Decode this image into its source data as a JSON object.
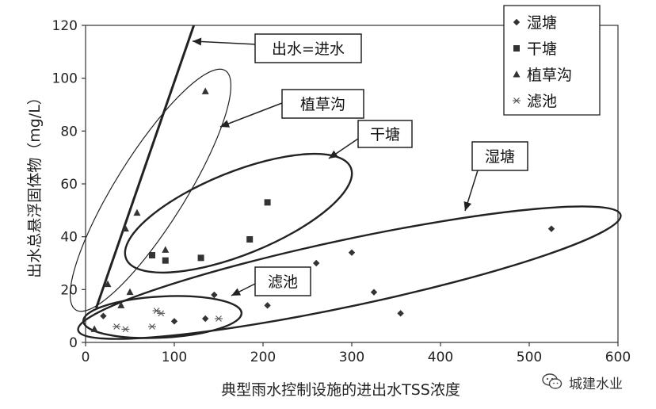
{
  "chart_data": {
    "type": "scatter",
    "xlabel": "典型雨水控制设施的进出水TSS浓度",
    "ylabel": "出水总悬浮固体物（mg/L）",
    "xlim": [
      0,
      600
    ],
    "ylim": [
      0,
      120
    ],
    "x_ticks": [
      "0",
      "100",
      "200",
      "300",
      "400",
      "500",
      "600"
    ],
    "y_ticks": [
      "0",
      "20",
      "40",
      "60",
      "80",
      "100",
      "120"
    ],
    "grid": false,
    "legend_position": "top-right",
    "series": [
      {
        "name": "湿塘",
        "marker": "diamond",
        "points": [
          [
            20,
            10
          ],
          [
            100,
            8
          ],
          [
            135,
            9
          ],
          [
            145,
            18
          ],
          [
            205,
            14
          ],
          [
            260,
            30
          ],
          [
            300,
            34
          ],
          [
            325,
            19
          ],
          [
            355,
            11
          ],
          [
            525,
            43
          ]
        ]
      },
      {
        "name": "干塘",
        "marker": "square",
        "points": [
          [
            75,
            33
          ],
          [
            90,
            31
          ],
          [
            130,
            32
          ],
          [
            185,
            39
          ],
          [
            205,
            53
          ]
        ]
      },
      {
        "name": "植草沟",
        "marker": "triangle",
        "points": [
          [
            10,
            5
          ],
          [
            25,
            22
          ],
          [
            40,
            14
          ],
          [
            45,
            43
          ],
          [
            50,
            19
          ],
          [
            58,
            49
          ],
          [
            90,
            35
          ],
          [
            135,
            95
          ]
        ]
      },
      {
        "name": "滤池",
        "marker": "asterisk",
        "points": [
          [
            35,
            6
          ],
          [
            45,
            5
          ],
          [
            75,
            6
          ],
          [
            80,
            12
          ],
          [
            85,
            11
          ],
          [
            150,
            9
          ]
        ]
      }
    ],
    "reference_line": {
      "label": "出水=进水",
      "points": [
        [
          12,
          13
        ],
        [
          122,
          120
        ]
      ]
    },
    "annotations": [
      {
        "label": "出水=进水",
        "box": true
      },
      {
        "label": "植草沟",
        "box": true
      },
      {
        "label": "干塘",
        "box": true
      },
      {
        "label": "湿塘",
        "box": true
      },
      {
        "label": "滤池",
        "box": true
      }
    ]
  },
  "watermark": {
    "text": "城建水业"
  }
}
